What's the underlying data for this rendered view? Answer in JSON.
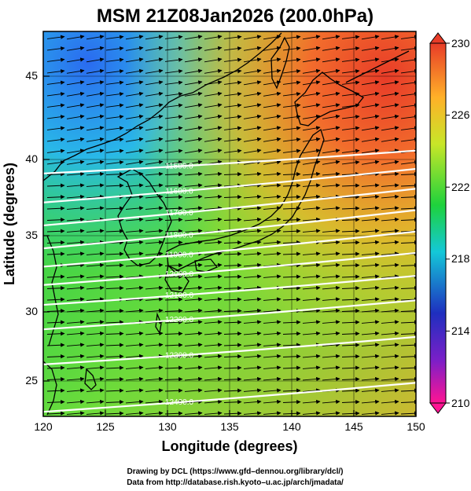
{
  "title": "MSM 21Z08Jan2026 (200.0hPa)",
  "x_axis": {
    "label": "Longitude (degrees)",
    "range": [
      120,
      150
    ],
    "ticks": [
      "120",
      "125",
      "130",
      "135",
      "140",
      "145",
      "150"
    ]
  },
  "y_axis": {
    "label": "Latitude  (degrees)",
    "range": [
      22.4,
      47.6
    ],
    "ticks": [
      "25",
      "30",
      "35",
      "40",
      "45"
    ]
  },
  "colorbar": {
    "range": [
      210,
      230
    ],
    "labels": [
      "230",
      "226",
      "222",
      "218",
      "214",
      "210"
    ],
    "colors": [
      "#ff1493",
      "#1e2fbf",
      "#14c8d8",
      "#1ed23c",
      "#c8e628",
      "#ffb028",
      "#e83c28"
    ]
  },
  "contours": {
    "color": "#ffffff",
    "lines": [
      {
        "label": "11500.0",
        "lat_west": 38.3,
        "lat_east": 39.8
      },
      {
        "label": "11600.0",
        "lat_west": 36.4,
        "lat_east": 38.6
      },
      {
        "label": "11700.0",
        "lat_west": 34.9,
        "lat_east": 37.3
      },
      {
        "label": "11800.0",
        "lat_west": 33.4,
        "lat_east": 35.9
      },
      {
        "label": "11900.0",
        "lat_west": 32.2,
        "lat_east": 34.5
      },
      {
        "label": "12000.0",
        "lat_west": 31.0,
        "lat_east": 33.1
      },
      {
        "label": "12100.0",
        "lat_west": 29.7,
        "lat_east": 31.6
      },
      {
        "label": "12200.0",
        "lat_west": 28.1,
        "lat_east": 30.0
      },
      {
        "label": "12300.0",
        "lat_west": 25.8,
        "lat_east": 27.6
      },
      {
        "label": "12400.0",
        "lat_west": 22.7,
        "lat_east": 24.6
      }
    ]
  },
  "wind_field": {
    "direction": "westerly",
    "color": "#000000"
  },
  "credits": [
    "Drawing by DCL (https://www.gfd–dennou.org/library/dcl/)",
    "Data from http://database.rish.kyoto–u.ac.jp/arch/jmadata/"
  ]
}
